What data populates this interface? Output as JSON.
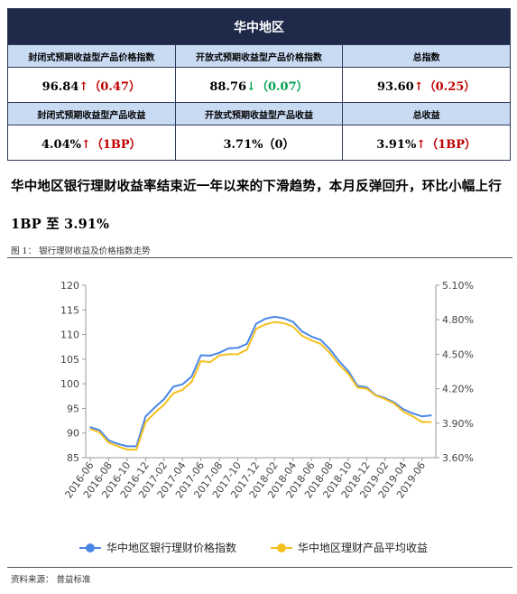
{
  "table": {
    "title": "华中地区",
    "headers1": [
      "封闭式预期收益型产品价格指数",
      "开放式预期收益型产品价格指数",
      "总指数"
    ],
    "values1": [
      {
        "value": "96.84",
        "arrow": "↑",
        "change": "（0.47）",
        "dir": "up"
      },
      {
        "value": "88.76",
        "arrow": "↓",
        "change": "（0.07）",
        "dir": "down"
      },
      {
        "value": "93.60",
        "arrow": "↑",
        "change": "（0.25）",
        "dir": "up"
      }
    ],
    "headers2": [
      "封闭式预期收益型产品收益",
      "开放式预期收益型产品收益",
      "总收益"
    ],
    "values2": [
      {
        "value": "4.04%",
        "arrow": "↑",
        "change": "（1BP）",
        "dir": "up"
      },
      {
        "value": "3.71%",
        "arrow": "",
        "change": "（0）",
        "dir": "flat"
      },
      {
        "value": "3.91%",
        "arrow": "↑",
        "change": "（1BP）",
        "dir": "up"
      }
    ]
  },
  "headline": "华中地区银行理财收益率结束近一年以来的下滑趋势，本月反弹回升，环比小幅上行 1BP 至 3.91%",
  "figure_label": "图 1：   银行理财收益及价格指数走势",
  "source": "资料来源：   普益标准",
  "colors": {
    "index": "#4a86e8",
    "yield": "#f5bf1f"
  },
  "chart_data": {
    "type": "line",
    "x_tick_labels": [
      "2016-06",
      "2016-08",
      "2016-10",
      "2016-12",
      "2017-02",
      "2017-04",
      "2017-06",
      "2017-08",
      "2017-10",
      "2017-12",
      "2018-02",
      "2018-04",
      "2018-06",
      "2018-08",
      "2018-10",
      "2018-12",
      "2019-02",
      "2019-04",
      "2019-06"
    ],
    "x": [
      "2016-06",
      "2016-07",
      "2016-08",
      "2016-09",
      "2016-10",
      "2016-11",
      "2016-12",
      "2017-01",
      "2017-02",
      "2017-03",
      "2017-04",
      "2017-05",
      "2017-06",
      "2017-07",
      "2017-08",
      "2017-09",
      "2017-10",
      "2017-11",
      "2017-12",
      "2018-01",
      "2018-02",
      "2018-03",
      "2018-04",
      "2018-05",
      "2018-06",
      "2018-07",
      "2018-08",
      "2018-09",
      "2018-10",
      "2018-11",
      "2018-12",
      "2019-01",
      "2019-02",
      "2019-03",
      "2019-04",
      "2019-05",
      "2019-06",
      "2019-07"
    ],
    "y_left_ticks": [
      "120",
      "115",
      "110",
      "105",
      "100",
      "95",
      "90",
      "85"
    ],
    "y_left_range": [
      85,
      120
    ],
    "y_right_ticks": [
      "5.10%",
      "4.80%",
      "4.50%",
      "4.20%",
      "3.90%",
      "3.60%"
    ],
    "y_right_range": [
      3.6,
      5.1
    ],
    "series": [
      {
        "name": "华中地区银行理财价格指数",
        "axis": "left",
        "values": [
          91.2,
          90.6,
          88.5,
          87.8,
          87.3,
          87.3,
          93.4,
          95.2,
          96.9,
          99.4,
          99.9,
          101.5,
          105.8,
          105.7,
          106.3,
          107.2,
          107.3,
          108.1,
          112.2,
          113.2,
          113.6,
          113.3,
          112.6,
          110.6,
          109.6,
          108.9,
          107.0,
          104.6,
          102.6,
          99.6,
          99.3,
          97.7,
          97.1,
          96.2,
          94.8,
          94.0,
          93.4,
          93.6
        ]
      },
      {
        "name": "华中地区理财产品平均收益",
        "axis": "right",
        "values": [
          3.85,
          3.82,
          3.73,
          3.7,
          3.67,
          3.67,
          3.91,
          3.99,
          4.06,
          4.16,
          4.19,
          4.26,
          4.44,
          4.43,
          4.49,
          4.5,
          4.5,
          4.54,
          4.72,
          4.76,
          4.78,
          4.77,
          4.74,
          4.66,
          4.62,
          4.59,
          4.51,
          4.41,
          4.33,
          4.21,
          4.2,
          4.14,
          4.11,
          4.07,
          4.0,
          3.96,
          3.91,
          3.91
        ]
      }
    ],
    "grid": false,
    "legend_position": "bottom"
  }
}
